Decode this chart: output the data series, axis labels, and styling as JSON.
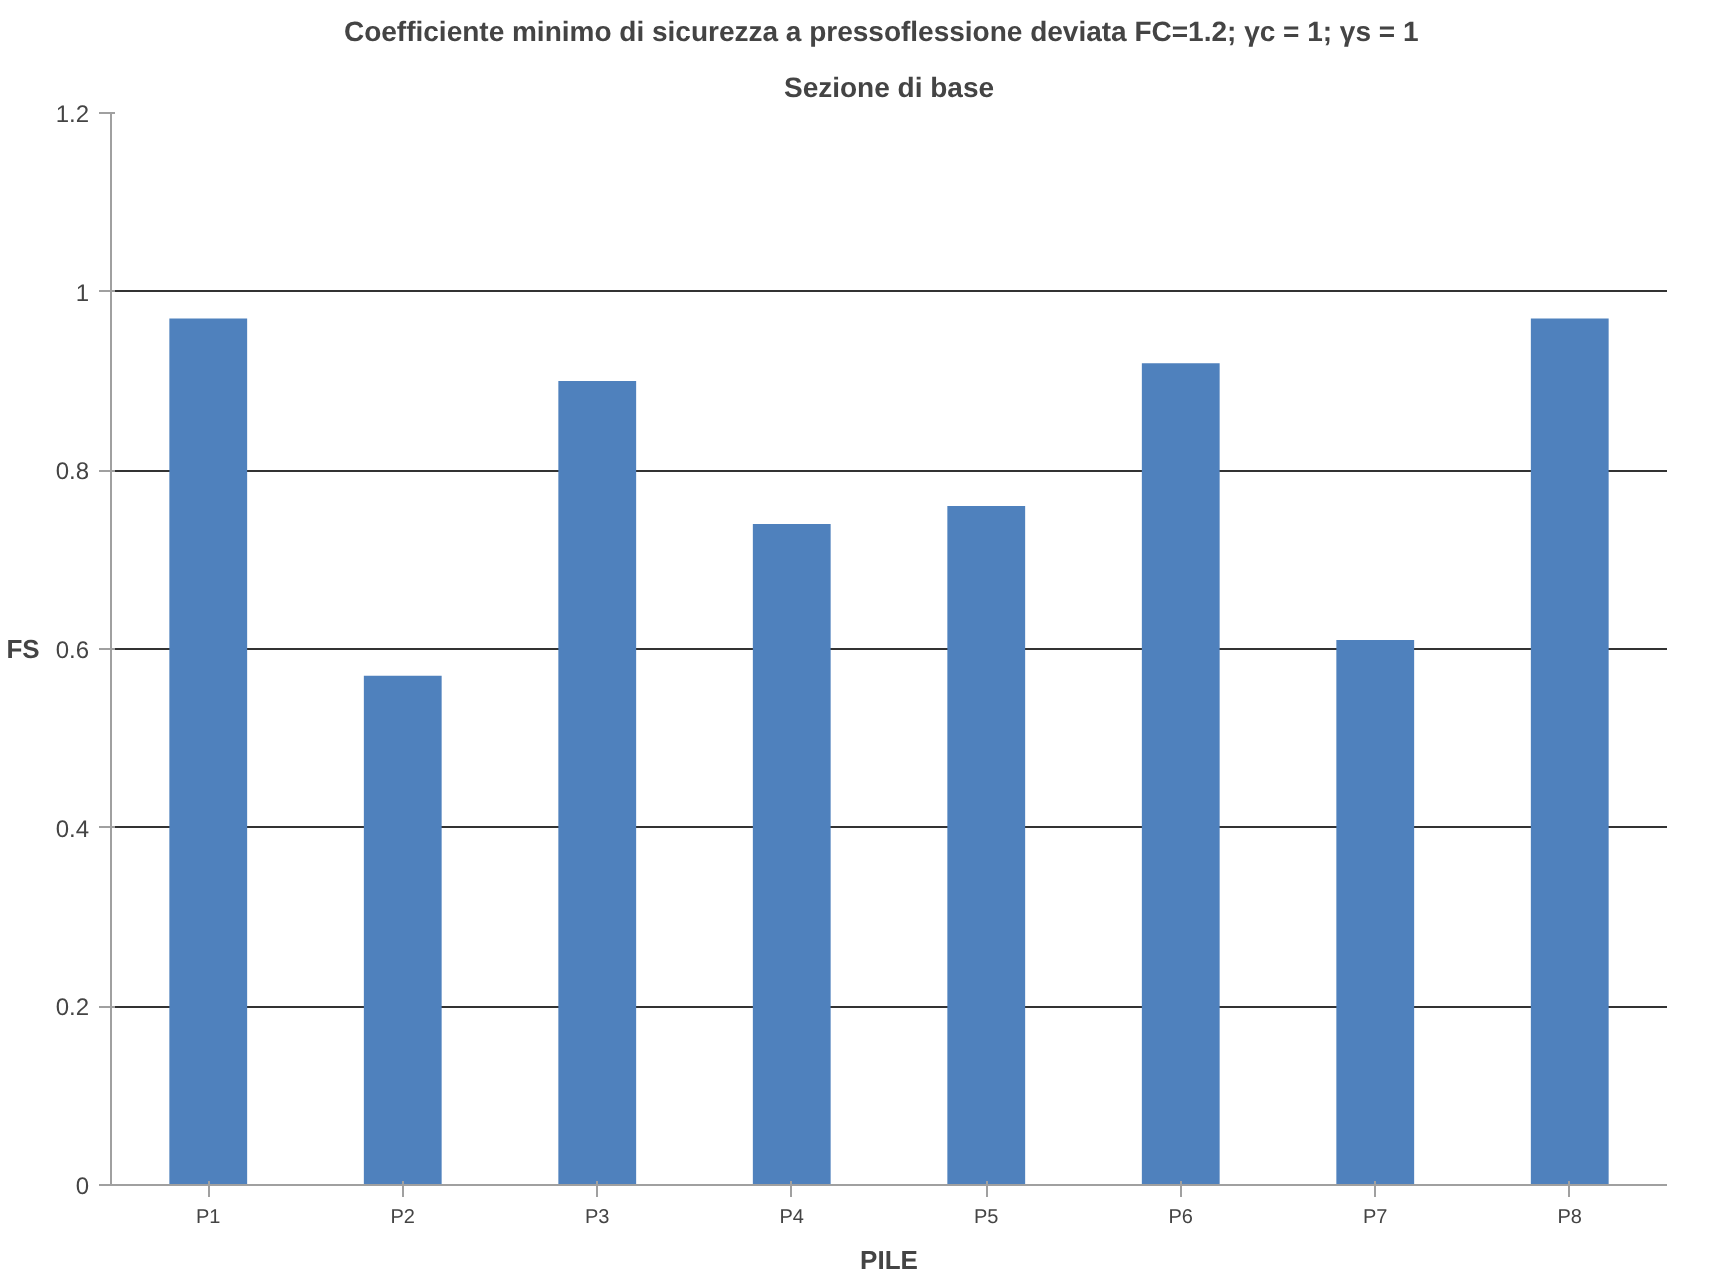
{
  "chart_data": {
    "type": "bar",
    "title": "Coefficiente minimo di sicurezza a pressoflessione deviata   FC=1.2; γc = 1; γs = 1",
    "subtitle": "Sezione di base",
    "xlabel": "PILE",
    "ylabel": "FS",
    "categories": [
      "P1",
      "P2",
      "P3",
      "P4",
      "P5",
      "P6",
      "P7",
      "P8"
    ],
    "values": [
      0.97,
      0.57,
      0.9,
      0.74,
      0.76,
      0.92,
      0.61,
      0.97
    ],
    "color": "#4f81bd",
    "ylim": [
      0,
      1.2
    ],
    "yticks": [
      0,
      0.2,
      0.4,
      0.6,
      0.8,
      1,
      1.2
    ],
    "grid": "y"
  }
}
